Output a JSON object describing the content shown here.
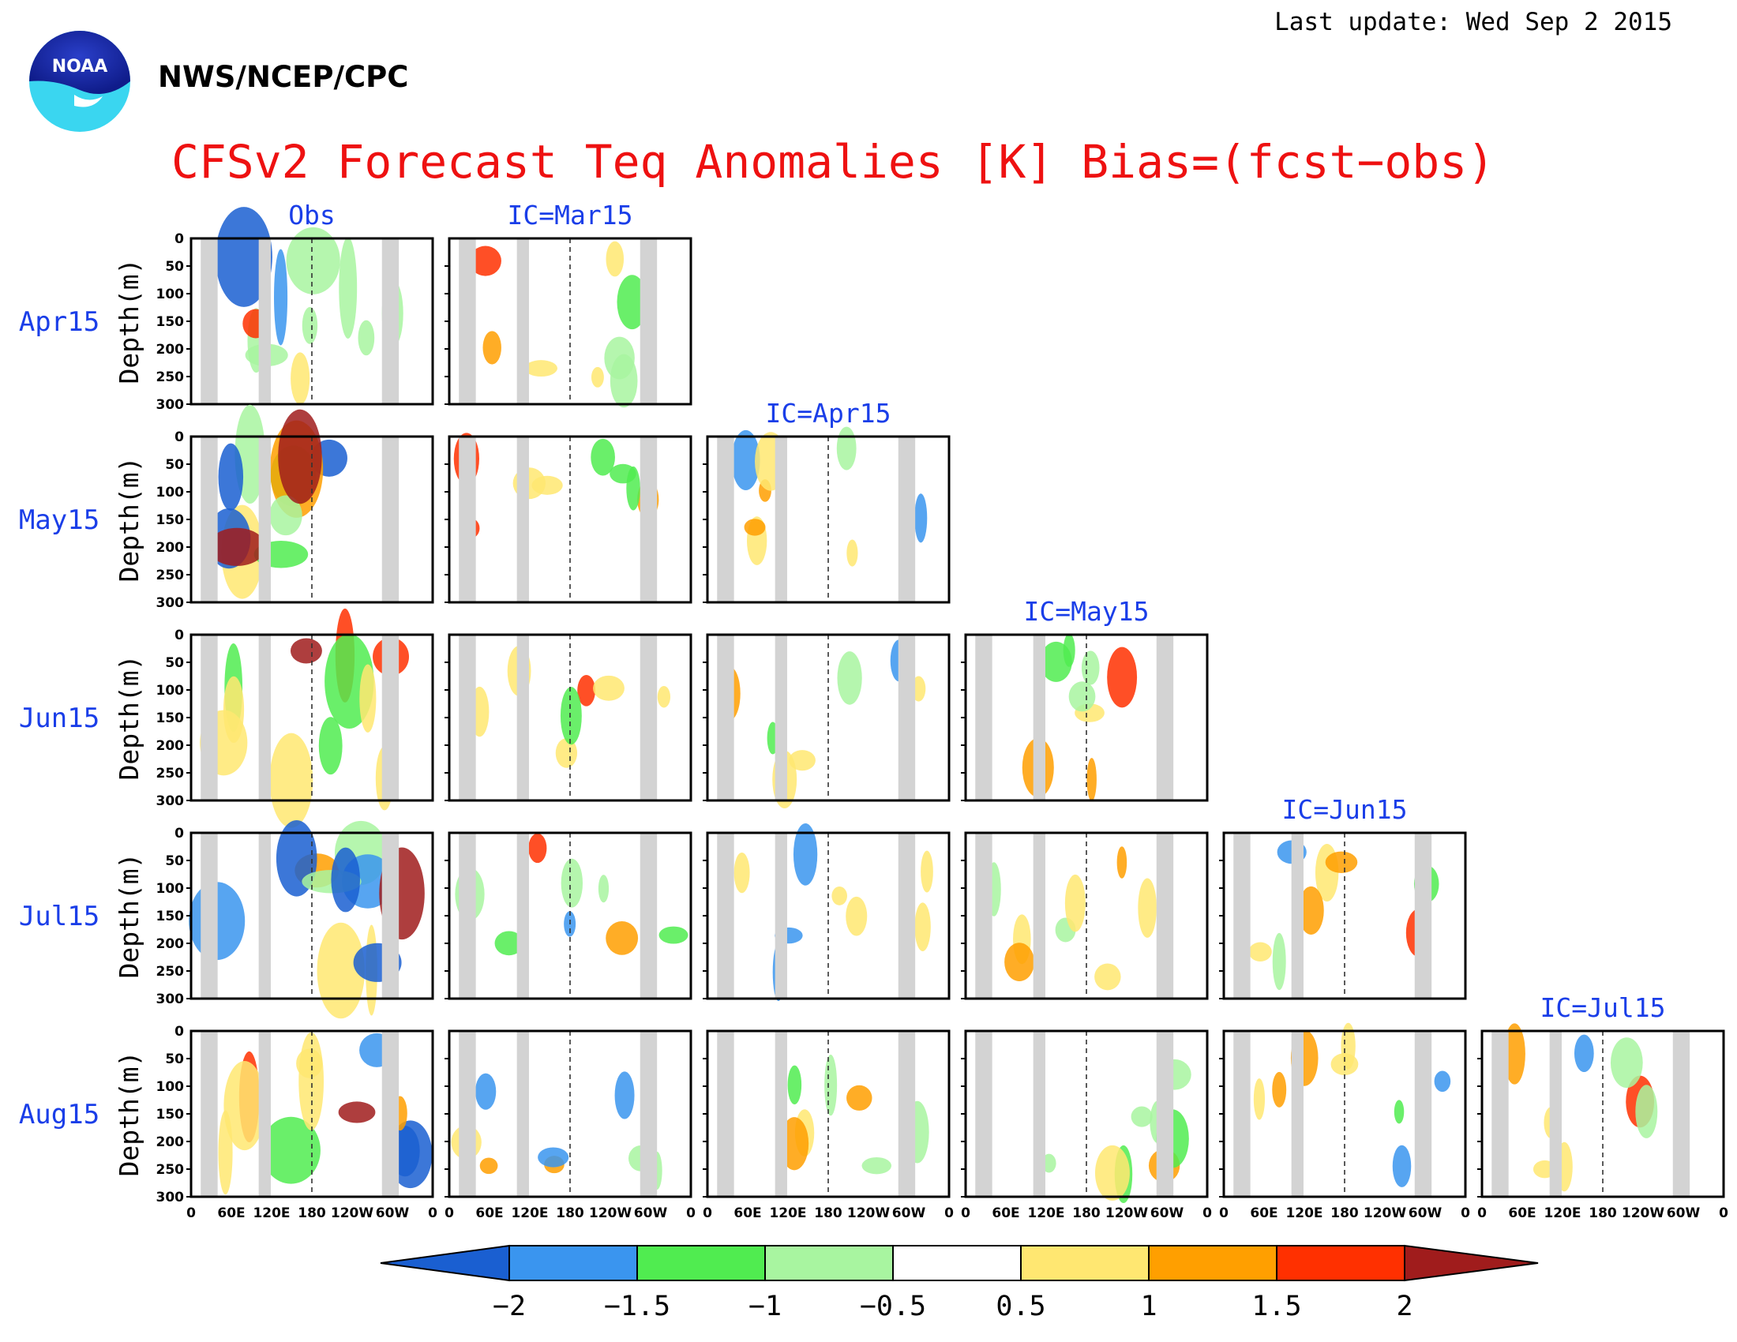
{
  "header": {
    "agency": "NWS/NCEP/CPC",
    "last_update": "Last update: Wed Sep 2 2015",
    "logo_text": "NOAA"
  },
  "colors": {
    "title": "#ee1111",
    "labels": "#1a3ee8",
    "land_mask": "#d3d3d3",
    "scale": [
      "#1a5fd1",
      "#3a95ef",
      "#50ec50",
      "#a8f5a0",
      "#ffffff",
      "#ffe771",
      "#ff9f00",
      "#ff3000",
      "#a01c1c"
    ]
  },
  "chart_data": {
    "type": "heatmap",
    "title": "CFSv2 Forecast Teq Anomalies [K] Bias=(fcst−obs)",
    "ylabel": "Depth(m)",
    "yticks": [
      "0",
      "50",
      "100",
      "150",
      "200",
      "250",
      "300"
    ],
    "ylim": [
      0,
      300
    ],
    "xticks": [
      "0",
      "60E",
      "120E",
      "180",
      "120W",
      "60W",
      "0"
    ],
    "columns": [
      "Obs",
      "IC=Mar15",
      "IC=Apr15",
      "IC=May15",
      "IC=Jun15",
      "IC=Jul15"
    ],
    "rows": [
      "Apr15",
      "May15",
      "Jun15",
      "Jul15",
      "Aug15"
    ],
    "colorbar": {
      "ticks": [
        "−2",
        "−1.5",
        "−1",
        "−0.5",
        "0.5",
        "1",
        "1.5",
        "2"
      ],
      "levels": [
        -2,
        -1.5,
        -1,
        -0.5,
        0.5,
        1,
        1.5,
        2
      ]
    },
    "grid": true,
    "legend": "bottom"
  }
}
